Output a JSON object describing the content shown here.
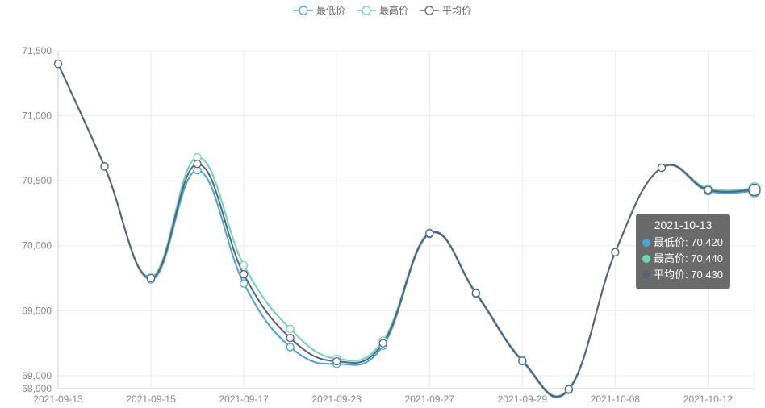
{
  "legend": [
    {
      "name": "最低价",
      "color": "#3fa7dc"
    },
    {
      "name": "最高价",
      "color": "#6bd7b0"
    },
    {
      "name": "平均价",
      "color": "#5d5f7a"
    }
  ],
  "tooltip": {
    "date": "2021-10-13",
    "rows": [
      {
        "label": "最低价: 70,420",
        "color": "#3fa7dc"
      },
      {
        "label": "最高价: 70,440",
        "color": "#6bd7b0"
      },
      {
        "label": "平均价: 70,430",
        "color": "#5d5f7a"
      }
    ]
  },
  "chart_data": {
    "type": "line",
    "x": [
      "2021-09-13",
      "2021-09-14",
      "2021-09-15",
      "2021-09-16",
      "2021-09-17",
      "2021-09-20",
      "2021-09-23",
      "2021-09-24",
      "2021-09-27",
      "2021-09-28",
      "2021-09-29",
      "2021-09-30",
      "2021-10-08",
      "2021-10-11",
      "2021-10-12",
      "2021-10-13"
    ],
    "x_tick_labels": [
      "2021-09-13",
      "2021-09-15",
      "2021-09-17",
      "2021-09-23",
      "2021-09-27",
      "2021-09-29",
      "2021-10-08",
      "2021-10-12"
    ],
    "y_ticks": [
      68900,
      69000,
      69500,
      70000,
      70500,
      71000,
      71500
    ],
    "y_tick_labels": [
      "68,900",
      "69,000",
      "69,500",
      "70,000",
      "70,500",
      "71,000",
      "71,500"
    ],
    "ylim": [
      68900,
      71500
    ],
    "grid": true,
    "legend_position": "top-center",
    "series": [
      {
        "name": "最低价",
        "values": [
          71400,
          70610,
          69740,
          70580,
          69710,
          69220,
          69090,
          69230,
          70090,
          69630,
          69110,
          68890,
          69950,
          70600,
          70420,
          70420
        ]
      },
      {
        "name": "最高价",
        "values": [
          71400,
          70610,
          69760,
          70680,
          69850,
          69360,
          69130,
          69270,
          70100,
          69640,
          69120,
          68900,
          69950,
          70600,
          70440,
          70440
        ]
      },
      {
        "name": "平均价",
        "values": [
          71400,
          70610,
          69750,
          70630,
          69780,
          69290,
          69110,
          69250,
          70095,
          69635,
          69115,
          68895,
          69950,
          70600,
          70430,
          70430
        ]
      }
    ]
  }
}
